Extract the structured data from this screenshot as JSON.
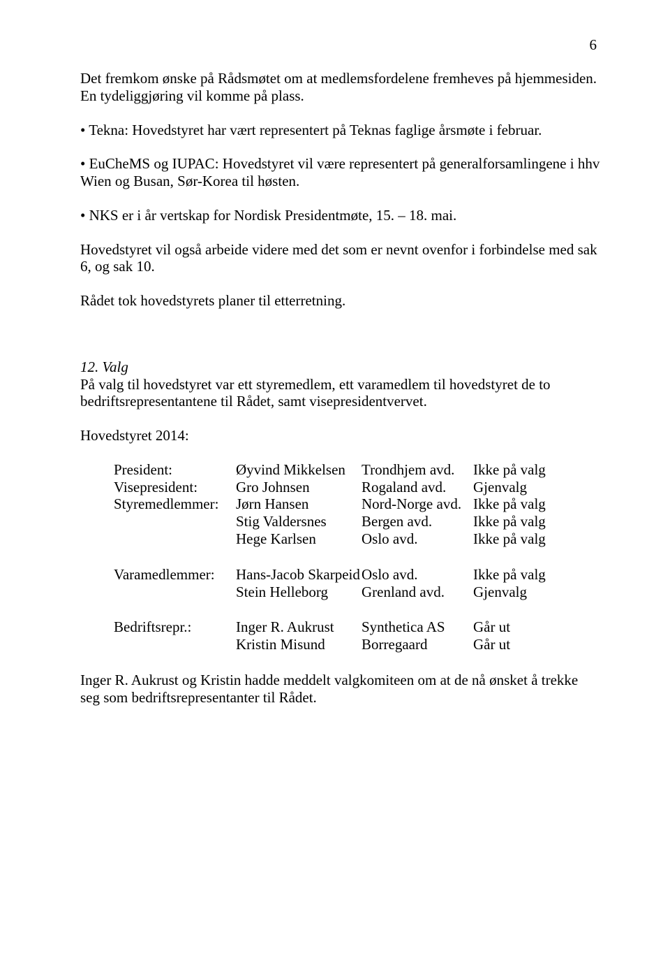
{
  "pageNumber": "6",
  "paragraphs": {
    "p1": "Det fremkom ønske på Rådsmøtet om at medlemsfordelene fremheves på hjemmesiden. En tydeliggjøring vil komme på plass.",
    "p2": "• Tekna: Hovedstyret har vært representert på Teknas faglige årsmøte i februar.",
    "p3": "• EuCheMS og IUPAC: Hovedstyret vil være representert på generalforsamlingene i hhv Wien og Busan, Sør-Korea til høsten.",
    "p4": "• NKS er i år vertskap for Nordisk Presidentmøte, 15. – 18. mai.",
    "p5": "Hovedstyret vil også arbeide videre med det som er nevnt ovenfor i forbindelse med sak 6, og sak 10.",
    "p6": "Rådet tok hovedstyrets planer til etterretning."
  },
  "section12": {
    "heading": "12. Valg",
    "text": "På valg til hovedstyret var ett styremedlem, ett varamedlem til hovedstyret de to bedriftsrepresentantene til Rådet, samt visepresidentvervet.",
    "subheading": "Hovedstyret 2014:"
  },
  "table1": {
    "rows": [
      {
        "c1": "President:",
        "c2": "Øyvind Mikkelsen",
        "c3": "Trondhjem avd.",
        "c4": "Ikke på valg"
      },
      {
        "c1": "Visepresident:",
        "c2": "Gro Johnsen",
        "c3": "Rogaland avd.",
        "c4": "Gjenvalg"
      },
      {
        "c1": "Styremedlemmer:",
        "c2": "Jørn Hansen",
        "c3": "Nord-Norge avd.",
        "c4": "Ikke på valg"
      },
      {
        "c1": "",
        "c2": "Stig Valdersnes",
        "c3": "Bergen avd.",
        "c4": "Ikke på valg"
      },
      {
        "c1": "",
        "c2": "Hege Karlsen",
        "c3": "Oslo avd.",
        "c4": "Ikke på valg"
      }
    ]
  },
  "table2": {
    "rows": [
      {
        "c1": "Varamedlemmer:",
        "c2": "Hans-Jacob Skarpeid",
        "c3": "Oslo avd.",
        "c4": "Ikke på valg"
      },
      {
        "c1": "",
        "c2": "Stein Helleborg",
        "c3": "Grenland avd.",
        "c4": "Gjenvalg"
      }
    ]
  },
  "table3": {
    "rows": [
      {
        "c1": "Bedriftsrepr.:",
        "c2": "Inger R. Aukrust",
        "c3": "Synthetica AS",
        "c4": "Går ut"
      },
      {
        "c1": "",
        "c2": "Kristin Misund",
        "c3": "Borregaard",
        "c4": "Går ut"
      }
    ]
  },
  "footer": "Inger R. Aukrust og Kristin hadde meddelt valgkomiteen om at de nå ønsket å trekke seg som bedriftsrepresentanter til Rådet."
}
